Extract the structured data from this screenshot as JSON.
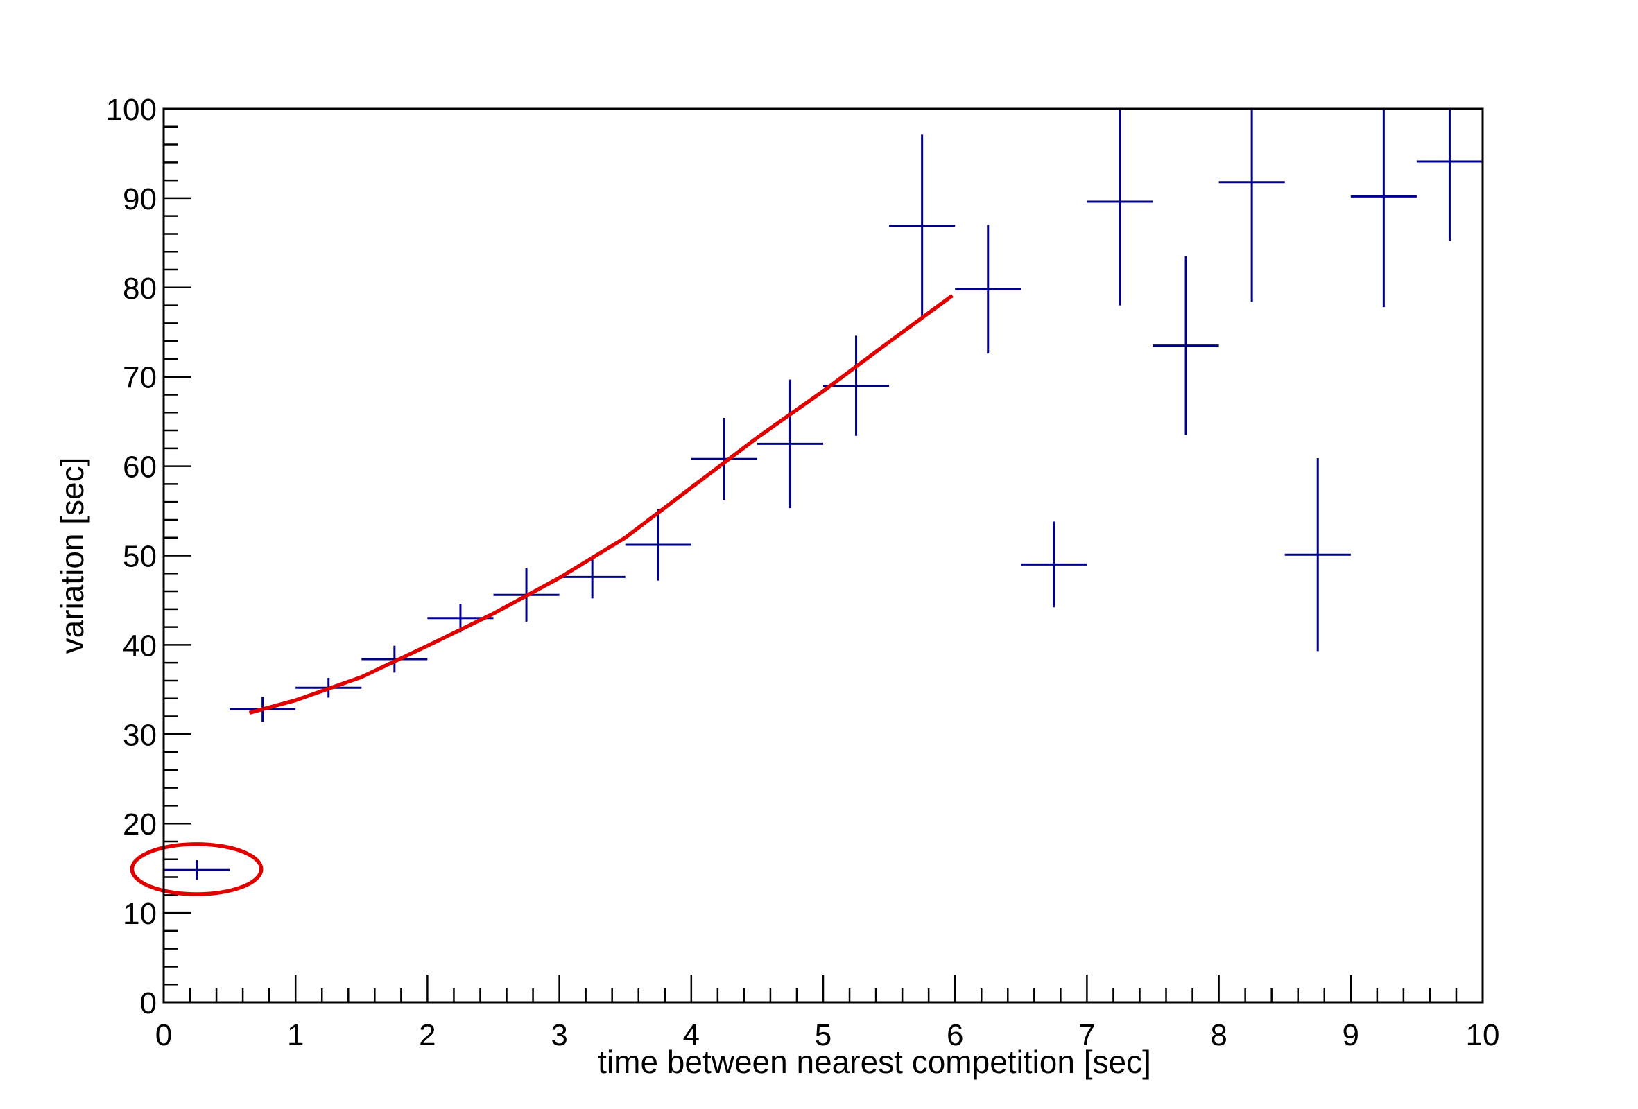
{
  "chart_data": {
    "type": "scatter",
    "title": "",
    "xlabel": "time between nearest competition [sec]",
    "ylabel": "variation [sec]",
    "xlim": [
      0,
      10
    ],
    "ylim": [
      0,
      100
    ],
    "xticks": [
      "0",
      "1",
      "2",
      "3",
      "4",
      "5",
      "6",
      "7",
      "8",
      "9",
      "10"
    ],
    "yticks": [
      "0",
      "10",
      "20",
      "30",
      "40",
      "50",
      "60",
      "70",
      "80",
      "90",
      "100"
    ],
    "grid": false,
    "legend": "none",
    "series": [
      {
        "kind": "points_with_error_bars",
        "color": "#00008b",
        "points": [
          {
            "x": 0.25,
            "xerr": 0.25,
            "y": 14.8,
            "yerr_low": 1.1,
            "yerr_high": 1.1
          },
          {
            "x": 0.75,
            "xerr": 0.25,
            "y": 32.8,
            "yerr_low": 1.4,
            "yerr_high": 1.4
          },
          {
            "x": 1.25,
            "xerr": 0.25,
            "y": 35.2,
            "yerr_low": 1.1,
            "yerr_high": 1.1
          },
          {
            "x": 1.75,
            "xerr": 0.25,
            "y": 38.4,
            "yerr_low": 1.5,
            "yerr_high": 1.5
          },
          {
            "x": 2.25,
            "xerr": 0.25,
            "y": 43.0,
            "yerr_low": 1.6,
            "yerr_high": 1.6
          },
          {
            "x": 2.75,
            "xerr": 0.25,
            "y": 45.6,
            "yerr_low": 3.0,
            "yerr_high": 3.0
          },
          {
            "x": 3.25,
            "xerr": 0.25,
            "y": 47.6,
            "yerr_low": 2.4,
            "yerr_high": 2.4
          },
          {
            "x": 3.75,
            "xerr": 0.25,
            "y": 51.2,
            "yerr_low": 4.0,
            "yerr_high": 4.0
          },
          {
            "x": 4.25,
            "xerr": 0.25,
            "y": 60.8,
            "yerr_low": 4.6,
            "yerr_high": 4.6
          },
          {
            "x": 4.75,
            "xerr": 0.25,
            "y": 62.5,
            "yerr_low": 7.2,
            "yerr_high": 7.2
          },
          {
            "x": 5.25,
            "xerr": 0.25,
            "y": 69.0,
            "yerr_low": 5.6,
            "yerr_high": 5.6
          },
          {
            "x": 5.75,
            "xerr": 0.25,
            "y": 86.9,
            "yerr_low": 10.2,
            "yerr_high": 10.2
          },
          {
            "x": 6.25,
            "xerr": 0.25,
            "y": 79.8,
            "yerr_low": 7.2,
            "yerr_high": 7.2
          },
          {
            "x": 6.75,
            "xerr": 0.25,
            "y": 49.0,
            "yerr_low": 4.8,
            "yerr_high": 4.8
          },
          {
            "x": 7.25,
            "xerr": 0.25,
            "y": 89.6,
            "yerr_low": 11.6,
            "yerr_high": 10.4
          },
          {
            "x": 7.75,
            "xerr": 0.25,
            "y": 73.5,
            "yerr_low": 10.0,
            "yerr_high": 10.0
          },
          {
            "x": 8.25,
            "xerr": 0.25,
            "y": 91.8,
            "yerr_low": 13.4,
            "yerr_high": 8.2
          },
          {
            "x": 8.75,
            "xerr": 0.25,
            "y": 50.1,
            "yerr_low": 10.8,
            "yerr_high": 10.8
          },
          {
            "x": 9.25,
            "xerr": 0.25,
            "y": 90.2,
            "yerr_low": 12.4,
            "yerr_high": 9.8
          },
          {
            "x": 9.75,
            "xerr": 0.25,
            "y": 94.1,
            "yerr_low": 8.9,
            "yerr_high": 5.9
          }
        ]
      },
      {
        "kind": "fit_curve",
        "color": "#e00000",
        "x": [
          0.65,
          1.0,
          1.5,
          2.0,
          2.5,
          3.0,
          3.5,
          4.0,
          4.5,
          5.0,
          5.5,
          5.98
        ],
        "y": [
          32.4,
          33.8,
          36.4,
          39.9,
          43.5,
          47.5,
          52.0,
          57.6,
          63.2,
          68.4,
          73.9,
          79.1
        ]
      }
    ],
    "annotations": [
      {
        "kind": "ellipse",
        "color": "#e00000",
        "cx": 0.25,
        "cy": 14.9,
        "rx": 0.49,
        "ry": 2.8
      }
    ]
  }
}
